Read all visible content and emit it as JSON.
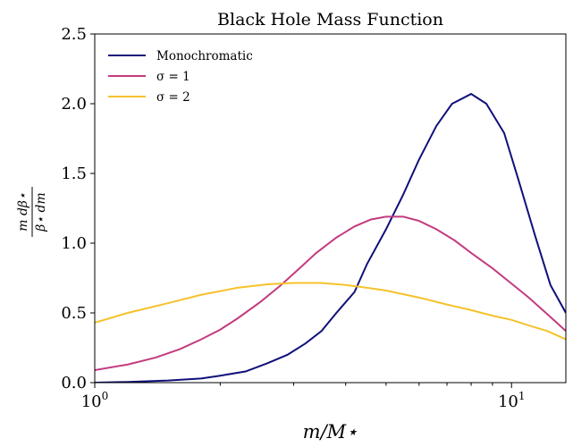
{
  "chart_data": {
    "type": "line",
    "title": "Black Hole Mass Function",
    "xlabel": "m/M⋆",
    "ylabel_numerator": "m dβ⋆",
    "ylabel_denominator": "β⋆ dm",
    "xscale": "log",
    "xlim": [
      1,
      13.5
    ],
    "ylim": [
      0,
      2.5
    ],
    "grid": false,
    "legend_position": "top-left",
    "yticks": [
      0.0,
      0.5,
      1.0,
      1.5,
      2.0,
      2.5
    ],
    "ytick_labels": [
      "0.0",
      "0.5",
      "1.0",
      "1.5",
      "2.0",
      "2.5"
    ],
    "xticks": [
      1,
      10
    ],
    "xtick_labels": [
      {
        "base": "10",
        "exp": "0"
      },
      {
        "base": "10",
        "exp": "1"
      }
    ],
    "series": [
      {
        "name": "Monochromatic",
        "color": "#10107a",
        "points": [
          [
            1.0,
            0.0
          ],
          [
            1.2,
            0.005
          ],
          [
            1.5,
            0.015
          ],
          [
            1.8,
            0.03
          ],
          [
            2.0,
            0.05
          ],
          [
            2.3,
            0.08
          ],
          [
            2.6,
            0.14
          ],
          [
            2.9,
            0.2
          ],
          [
            3.2,
            0.28
          ],
          [
            3.5,
            0.37
          ],
          [
            3.8,
            0.5
          ],
          [
            4.2,
            0.65
          ],
          [
            4.5,
            0.85
          ],
          [
            5.0,
            1.1
          ],
          [
            5.5,
            1.35
          ],
          [
            6.0,
            1.6
          ],
          [
            6.6,
            1.84
          ],
          [
            7.2,
            2.0
          ],
          [
            8.0,
            2.07
          ],
          [
            8.7,
            2.0
          ],
          [
            9.6,
            1.79
          ],
          [
            10.4,
            1.45
          ],
          [
            11.4,
            1.05
          ],
          [
            12.4,
            0.7
          ],
          [
            13.5,
            0.5
          ]
        ]
      },
      {
        "name": "σ = 1",
        "color": "#c33b7f",
        "points": [
          [
            1.0,
            0.09
          ],
          [
            1.2,
            0.13
          ],
          [
            1.4,
            0.18
          ],
          [
            1.6,
            0.24
          ],
          [
            1.8,
            0.31
          ],
          [
            2.0,
            0.38
          ],
          [
            2.2,
            0.46
          ],
          [
            2.5,
            0.58
          ],
          [
            2.8,
            0.7
          ],
          [
            3.1,
            0.82
          ],
          [
            3.4,
            0.93
          ],
          [
            3.8,
            1.04
          ],
          [
            4.2,
            1.12
          ],
          [
            4.6,
            1.17
          ],
          [
            5.0,
            1.19
          ],
          [
            5.5,
            1.19
          ],
          [
            6.0,
            1.16
          ],
          [
            6.6,
            1.1
          ],
          [
            7.3,
            1.02
          ],
          [
            8.0,
            0.93
          ],
          [
            9.0,
            0.82
          ],
          [
            10.0,
            0.71
          ],
          [
            11.0,
            0.61
          ],
          [
            12.3,
            0.48
          ],
          [
            13.5,
            0.37
          ]
        ]
      },
      {
        "name": "σ = 2",
        "color": "#f5c22c",
        "points": [
          [
            1.0,
            0.43
          ],
          [
            1.2,
            0.5
          ],
          [
            1.5,
            0.57
          ],
          [
            1.8,
            0.63
          ],
          [
            2.2,
            0.68
          ],
          [
            2.6,
            0.705
          ],
          [
            3.0,
            0.715
          ],
          [
            3.5,
            0.715
          ],
          [
            4.0,
            0.7
          ],
          [
            4.5,
            0.68
          ],
          [
            5.0,
            0.66
          ],
          [
            6.0,
            0.61
          ],
          [
            7.0,
            0.56
          ],
          [
            8.0,
            0.52
          ],
          [
            9.0,
            0.48
          ],
          [
            10.0,
            0.45
          ],
          [
            11.0,
            0.41
          ],
          [
            12.2,
            0.37
          ],
          [
            13.5,
            0.31
          ]
        ]
      }
    ]
  }
}
